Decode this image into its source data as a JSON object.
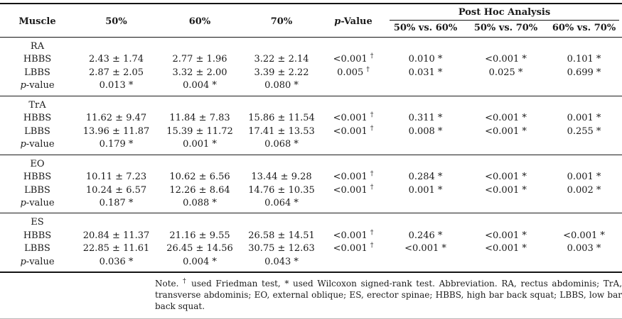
{
  "table": {
    "header": {
      "muscle": "Muscle",
      "intensity_cols": [
        "50%",
        "60%",
        "70%"
      ],
      "p_value_italic": "p",
      "p_value_rest": "-Value",
      "post_hoc_title": "Post Hoc Analysis",
      "post_hoc_cols": [
        "50% vs. 60%",
        "50% vs. 70%",
        "60% vs. 70%"
      ]
    },
    "groups": [
      {
        "muscle": "RA",
        "rows": [
          {
            "label": "HBBS",
            "values": [
              "2.43 ± 1.74",
              "2.77 ± 1.96",
              "3.22 ± 2.14"
            ],
            "p_value": "<0.001",
            "p_marker": "†",
            "post_hoc": [
              "0.010 *",
              "<0.001 *",
              "0.101 *"
            ]
          },
          {
            "label": "LBBS",
            "values": [
              "2.87 ± 2.05",
              "3.32 ± 2.00",
              "3.39 ± 2.22"
            ],
            "p_value": "0.005",
            "p_marker": "†",
            "post_hoc": [
              "0.031 *",
              "0.025 *",
              "0.699 *"
            ]
          }
        ],
        "p_row": {
          "label_italic": "p",
          "label_rest": "-value",
          "values": [
            "0.013 *",
            "0.004 *",
            "0.080 *"
          ]
        }
      },
      {
        "muscle": "TrA",
        "rows": [
          {
            "label": "HBBS",
            "values": [
              "11.62 ± 9.47",
              "11.84 ± 7.83",
              "15.86 ± 11.54"
            ],
            "p_value": "<0.001",
            "p_marker": "†",
            "post_hoc": [
              "0.311 *",
              "<0.001 *",
              "0.001 *"
            ]
          },
          {
            "label": "LBBS",
            "values": [
              "13.96 ± 11.87",
              "15.39 ± 11.72",
              "17.41 ± 13.53"
            ],
            "p_value": "<0.001",
            "p_marker": "†",
            "post_hoc": [
              "0.008 *",
              "<0.001 *",
              "0.255 *"
            ]
          }
        ],
        "p_row": {
          "label_italic": "p",
          "label_rest": "-value",
          "values": [
            "0.179 *",
            "0.001 *",
            "0.068 *"
          ]
        }
      },
      {
        "muscle": "EO",
        "rows": [
          {
            "label": "HBBS",
            "values": [
              "10.11 ± 7.23",
              "10.62 ± 6.56",
              "13.44 ± 9.28"
            ],
            "p_value": "<0.001",
            "p_marker": "†",
            "post_hoc": [
              "0.284 *",
              "<0.001 *",
              "0.001 *"
            ]
          },
          {
            "label": "LBBS",
            "values": [
              "10.24 ± 6.57",
              "12.26 ± 8.64",
              "14.76 ± 10.35"
            ],
            "p_value": "<0.001",
            "p_marker": "†",
            "post_hoc": [
              "0.001 *",
              "<0.001 *",
              "0.002 *"
            ]
          }
        ],
        "p_row": {
          "label_italic": "p",
          "label_rest": "-value",
          "values": [
            "0.187 *",
            "0.088 *",
            "0.064 *"
          ]
        }
      },
      {
        "muscle": "ES",
        "rows": [
          {
            "label": "HBBS",
            "values": [
              "20.84 ± 11.37",
              "21.16 ± 9.55",
              "26.58 ± 14.51"
            ],
            "p_value": "<0.001",
            "p_marker": "†",
            "post_hoc": [
              "0.246 *",
              "<0.001 *",
              "<0.001 *"
            ]
          },
          {
            "label": "LBBS",
            "values": [
              "22.85 ± 11.61",
              "26.45 ± 14.56",
              "30.75 ± 12.63"
            ],
            "p_value": "<0.001",
            "p_marker": "†",
            "post_hoc": [
              "<0.001 *",
              "<0.001 *",
              "0.003 *"
            ]
          }
        ],
        "p_row": {
          "label_italic": "p",
          "label_rest": "-value",
          "values": [
            "0.036 *",
            "0.004 *",
            "0.043 *"
          ]
        }
      }
    ]
  },
  "footnote": {
    "parts": [
      {
        "text": "Note. "
      },
      {
        "sup": "†"
      },
      {
        "text": " used Friedman test, * used Wilcoxon signed-rank test. Abbreviation. RA, rectus abdominis; TrA, transverse abdominis; EO, external oblique; ES, erector spinae; HBBS, high bar back squat; LBBS, low bar back squat."
      }
    ]
  },
  "colors": {
    "text": "#1a1a1a",
    "rule_dark": "#141414",
    "rule_faint": "#b9b9b9",
    "background": "#ffffff"
  }
}
